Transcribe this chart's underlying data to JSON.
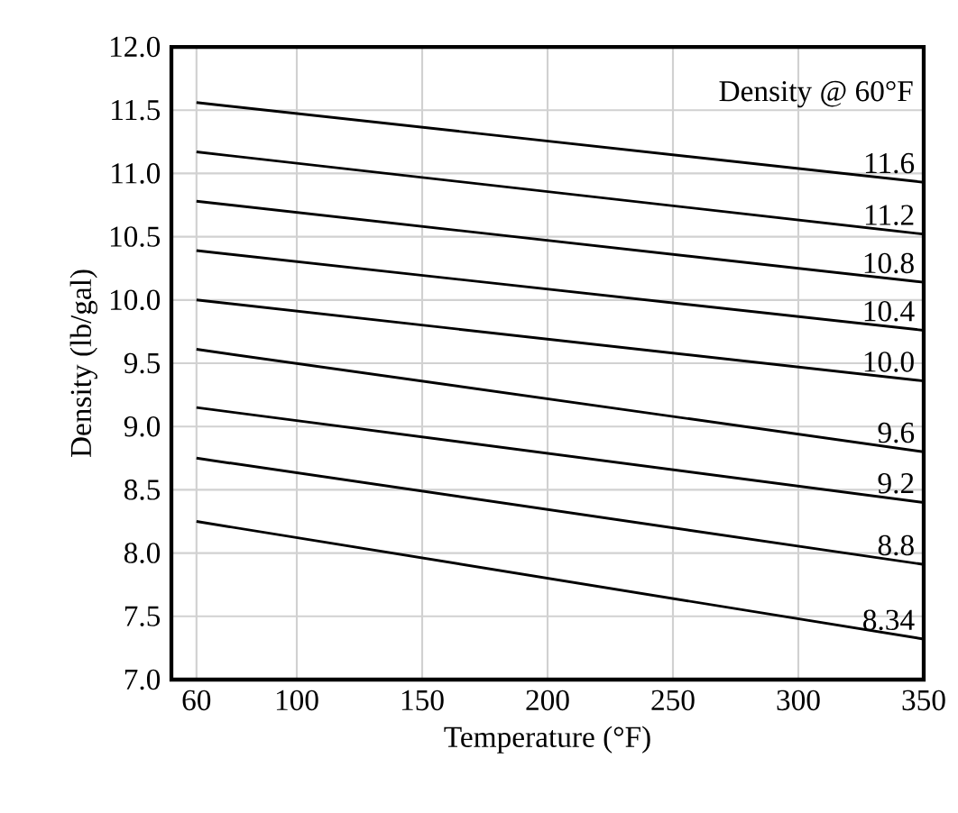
{
  "chart_data": {
    "type": "line",
    "xlabel": "Temperature (°F)",
    "ylabel": "Density (lb/gal)",
    "legend_title": "Density @ 60°F",
    "xlim": [
      50,
      350
    ],
    "ylim": [
      7.0,
      12.0
    ],
    "xticks": [
      60,
      100,
      150,
      200,
      250,
      300,
      350
    ],
    "yticks": [
      {
        "value": 7.0,
        "label": "7.0"
      },
      {
        "value": 7.5,
        "label": "7.5"
      },
      {
        "value": 8.0,
        "label": "8.0"
      },
      {
        "value": 8.5,
        "label": "8.5"
      },
      {
        "value": 9.0,
        "label": "9.0"
      },
      {
        "value": 9.5,
        "label": "9.5"
      },
      {
        "value": 10.0,
        "label": "10.0"
      },
      {
        "value": 10.5,
        "label": "10.5"
      },
      {
        "value": 11.0,
        "label": "11.0"
      },
      {
        "value": 11.5,
        "label": "11.5"
      },
      {
        "value": 12.0,
        "label": "12.0"
      }
    ],
    "grid": true,
    "legend": false,
    "marker": "none",
    "line_style": "solid",
    "x": [
      60,
      350
    ],
    "series": [
      {
        "name": "11.6",
        "color": "#000000",
        "values": [
          11.56,
          10.93
        ]
      },
      {
        "name": "11.2",
        "color": "#000000",
        "values": [
          11.17,
          10.52
        ]
      },
      {
        "name": "10.8",
        "color": "#000000",
        "values": [
          10.78,
          10.14
        ]
      },
      {
        "name": "10.4",
        "color": "#000000",
        "values": [
          10.39,
          9.76
        ]
      },
      {
        "name": "10.0",
        "color": "#000000",
        "values": [
          10.0,
          9.36
        ]
      },
      {
        "name": "9.6",
        "color": "#000000",
        "values": [
          9.61,
          8.8
        ]
      },
      {
        "name": "9.2",
        "color": "#000000",
        "values": [
          9.15,
          8.4
        ]
      },
      {
        "name": "8.8",
        "color": "#000000",
        "values": [
          8.75,
          7.91
        ]
      },
      {
        "name": "8.34",
        "color": "#000000",
        "values": [
          8.25,
          7.32
        ]
      }
    ]
  }
}
